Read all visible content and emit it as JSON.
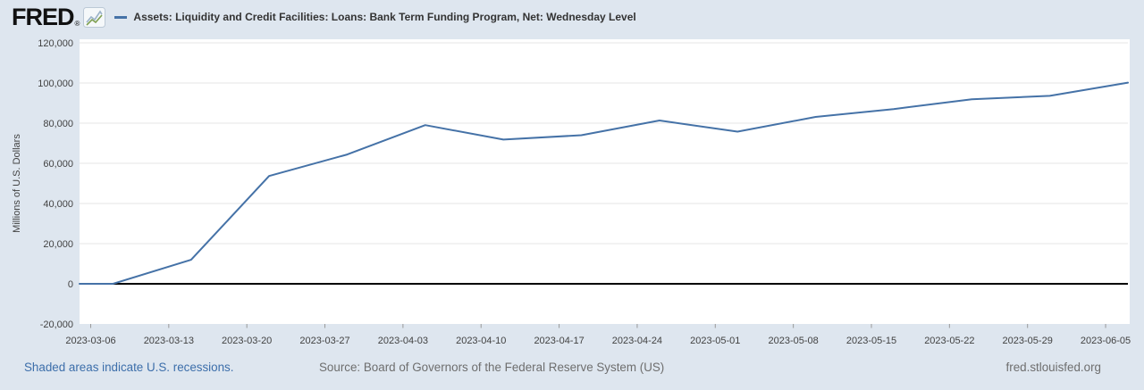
{
  "header": {
    "logo_text": "FRED",
    "registered_mark": "®",
    "title": "Assets: Liquidity and Credit Facilities: Loans: Bank Term Funding Program, Net: Wednesday Level"
  },
  "footer": {
    "recession_note": "Shaded areas indicate U.S. recessions.",
    "source": "Source: Board of Governors of the Federal Reserve System (US)",
    "site": "fred.stlouisfed.org"
  },
  "colors": {
    "bg": "#dee6ef",
    "line": "#4572a7",
    "grid": "#e6e6e6",
    "zero": "#000000",
    "link": "#3c6eaa",
    "gray": "#6e6e6e",
    "title_text": "#333333",
    "axis_text": "#424242",
    "tick_mark": "#999999"
  },
  "icons": {
    "logo_chart": "sparkline-icon"
  },
  "chart_data": {
    "type": "line",
    "title": "Assets: Liquidity and Credit Facilities: Loans: Bank Term Funding Program, Net: Wednesday Level",
    "xlabel": "",
    "ylabel": "Millions of U.S. Dollars",
    "x_domain": [
      "2023-03-05",
      "2023-06-07"
    ],
    "ylim": [
      -20000,
      120000
    ],
    "y_ticks": [
      -20000,
      0,
      20000,
      40000,
      60000,
      80000,
      100000,
      120000
    ],
    "x_ticks": [
      "2023-03-06",
      "2023-03-13",
      "2023-03-20",
      "2023-03-27",
      "2023-04-03",
      "2023-04-10",
      "2023-04-17",
      "2023-04-24",
      "2023-05-01",
      "2023-05-08",
      "2023-05-15",
      "2023-05-22",
      "2023-05-29",
      "2023-06-05"
    ],
    "grid": true,
    "zero_line": true,
    "legend_position": "top-left",
    "extend_first_value_to_left_edge": true,
    "series": [
      {
        "name": "Assets: Liquidity and Credit Facilities: Loans: Bank Term Funding Program, Net: Wednesday Level",
        "color": "#4572a7",
        "x": [
          "2023-03-08",
          "2023-03-15",
          "2023-03-22",
          "2023-03-29",
          "2023-04-05",
          "2023-04-12",
          "2023-04-19",
          "2023-04-26",
          "2023-05-03",
          "2023-05-10",
          "2023-05-17",
          "2023-05-24",
          "2023-05-31",
          "2023-06-07"
        ],
        "values": [
          0,
          11943,
          53669,
          64403,
          79021,
          71837,
          73982,
          81327,
          75778,
          83101,
          87006,
          91907,
          93615,
          100161
        ]
      }
    ]
  }
}
